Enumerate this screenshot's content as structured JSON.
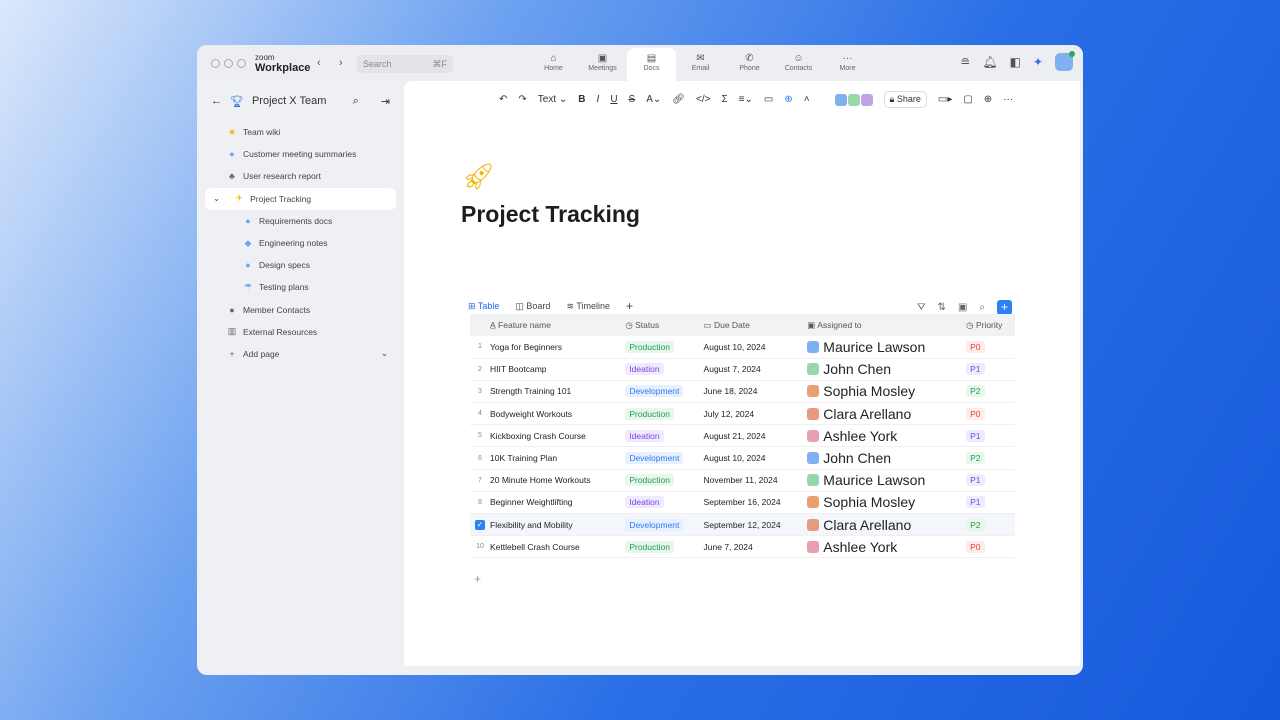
{
  "titlebar": {
    "brand_small": "zoom",
    "brand": "Workplace",
    "search_placeholder": "Search",
    "search_shortcut": "⌘F",
    "tabs": [
      {
        "label": "Home",
        "icon": "⌂"
      },
      {
        "label": "Meetings",
        "icon": "▣"
      },
      {
        "label": "Docs",
        "icon": "▤"
      },
      {
        "label": "Email",
        "icon": "✉"
      },
      {
        "label": "Phone",
        "icon": "✆"
      },
      {
        "label": "Contacts",
        "icon": "☺"
      },
      {
        "label": "More",
        "icon": "···"
      }
    ],
    "active_tab": "Docs"
  },
  "sidebar": {
    "title": "Project X Team",
    "items": [
      {
        "label": "Team wiki",
        "icon": "★",
        "color": "#f2b705"
      },
      {
        "label": "Customer meeting summaries",
        "icon": "●",
        "color": "#6aa8f0"
      },
      {
        "label": "User research report",
        "icon": "♣",
        "color": "#667"
      },
      {
        "label": "Project Tracking",
        "icon": "✈",
        "color": "#f2b705"
      },
      {
        "label": "Requirements docs",
        "icon": "●",
        "color": "#6aa8f0"
      },
      {
        "label": "Engineering notes",
        "icon": "◆",
        "color": "#6aa8f0"
      },
      {
        "label": "Design specs",
        "icon": "●",
        "color": "#6aa8f0"
      },
      {
        "label": "Testing plans",
        "icon": "☂",
        "color": "#6aa8f0"
      },
      {
        "label": "Member Contacts",
        "icon": "●",
        "color": "#667"
      },
      {
        "label": "External Resources",
        "icon": "▥",
        "color": "#667"
      },
      {
        "label": "Add page",
        "icon": "+",
        "color": "#667"
      }
    ]
  },
  "toolbar": {
    "text_style": "Text",
    "share": "Share"
  },
  "doc": {
    "title": "Project Tracking",
    "views": [
      "Table",
      "Board",
      "Timeline"
    ],
    "columns": [
      "Feature name",
      "Status",
      "Due Date",
      "Assigned to",
      "Priority"
    ],
    "rows": [
      [
        "1",
        "Yoga for Beginners",
        "Production",
        "August 10, 2024",
        "Maurice Lawson",
        "P0"
      ],
      [
        "2",
        "HIIT Bootcamp",
        "Ideation",
        "August 7, 2024",
        "John Chen",
        "P1"
      ],
      [
        "3",
        "Strength Training 101",
        "Development",
        "June 18, 2024",
        "Sophia Mosley",
        "P2"
      ],
      [
        "4",
        "Bodyweight Workouts",
        "Production",
        "July 12, 2024",
        "Clara Arellano",
        "P0"
      ],
      [
        "5",
        "Kickboxing Crash Course",
        "Ideation",
        "August 21, 2024",
        "Ashlee York",
        "P1"
      ],
      [
        "6",
        "10K Training Plan",
        "Development",
        "August 10, 2024",
        "John Chen",
        "P2"
      ],
      [
        "7",
        "20 Minute Home Workouts",
        "Production",
        "November 11, 2024",
        "Maurice Lawson",
        "P1"
      ],
      [
        "8",
        "Beginner Weightlifting",
        "Ideation",
        "September 16, 2024",
        "Sophia Mosley",
        "P1"
      ],
      [
        "9",
        "Flexibility and Mobility",
        "Development",
        "September 12, 2024",
        "Clara Arellano",
        "P2"
      ],
      [
        "10",
        "Kettlebell Crash Course",
        "Production",
        "June 7, 2024",
        "Ashlee York",
        "P0"
      ]
    ],
    "selected_row": 9
  }
}
